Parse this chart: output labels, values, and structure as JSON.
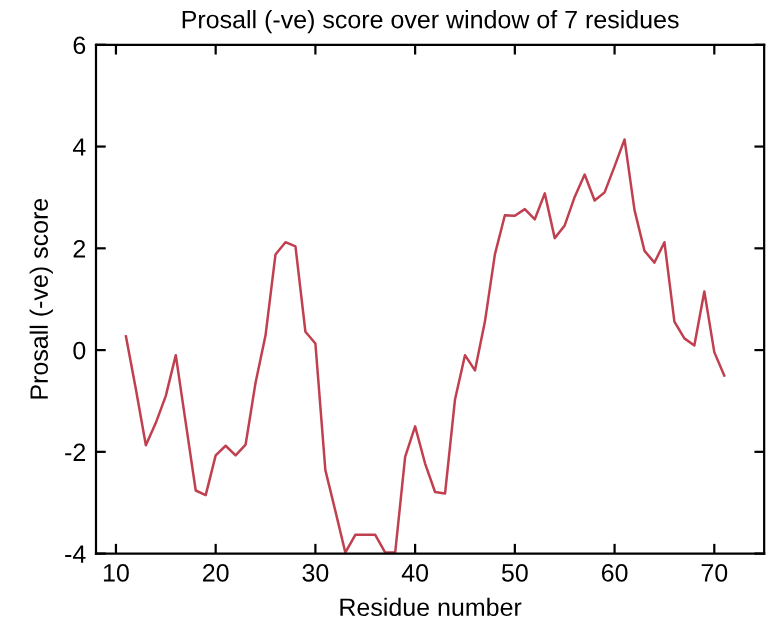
{
  "chart_data": {
    "type": "line",
    "title": "Prosall (-ve) score over window of 7 residues",
    "xlabel": "Residue number",
    "ylabel": "Prosall (-ve) score",
    "x": [
      11,
      12,
      13,
      14,
      15,
      16,
      17,
      18,
      19,
      20,
      21,
      22,
      23,
      24,
      25,
      26,
      27,
      28,
      29,
      30,
      31,
      32,
      33,
      34,
      35,
      36,
      37,
      38,
      39,
      40,
      41,
      42,
      43,
      44,
      45,
      46,
      47,
      48,
      49,
      50,
      51,
      52,
      53,
      54,
      55,
      56,
      57,
      58,
      59,
      60,
      61,
      62,
      63,
      64,
      65,
      66,
      67,
      68,
      69,
      70,
      71
    ],
    "series": [
      {
        "color": "#c04050",
        "values": [
          0.27,
          -0.77,
          -1.87,
          -1.43,
          -0.9,
          -0.1,
          -1.43,
          -2.76,
          -2.85,
          -2.07,
          -1.88,
          -2.07,
          -1.86,
          -0.64,
          0.29,
          1.88,
          2.12,
          2.04,
          0.36,
          0.13,
          -2.36,
          -3.16,
          -3.98,
          -3.63,
          -3.63,
          -3.63,
          -3.98,
          -3.98,
          -2.1,
          -1.5,
          -2.23,
          -2.79,
          -2.82,
          -0.97,
          -0.1,
          -0.4,
          0.56,
          1.88,
          2.65,
          2.64,
          2.77,
          2.57,
          3.08,
          2.2,
          2.45,
          3.01,
          3.45,
          2.94,
          3.1,
          3.61,
          4.14,
          2.75,
          1.95,
          1.72,
          2.12,
          0.56,
          0.23,
          0.09,
          1.15,
          -0.04,
          -0.5
        ]
      }
    ],
    "xlim": [
      8,
      75
    ],
    "ylim": [
      -4,
      6
    ],
    "xticks": [
      10,
      20,
      30,
      40,
      50,
      60,
      70
    ],
    "yticks": [
      -4,
      -2,
      0,
      2,
      4,
      6
    ],
    "grid": false,
    "legend": false,
    "marker": "none",
    "line_style": "solid"
  }
}
